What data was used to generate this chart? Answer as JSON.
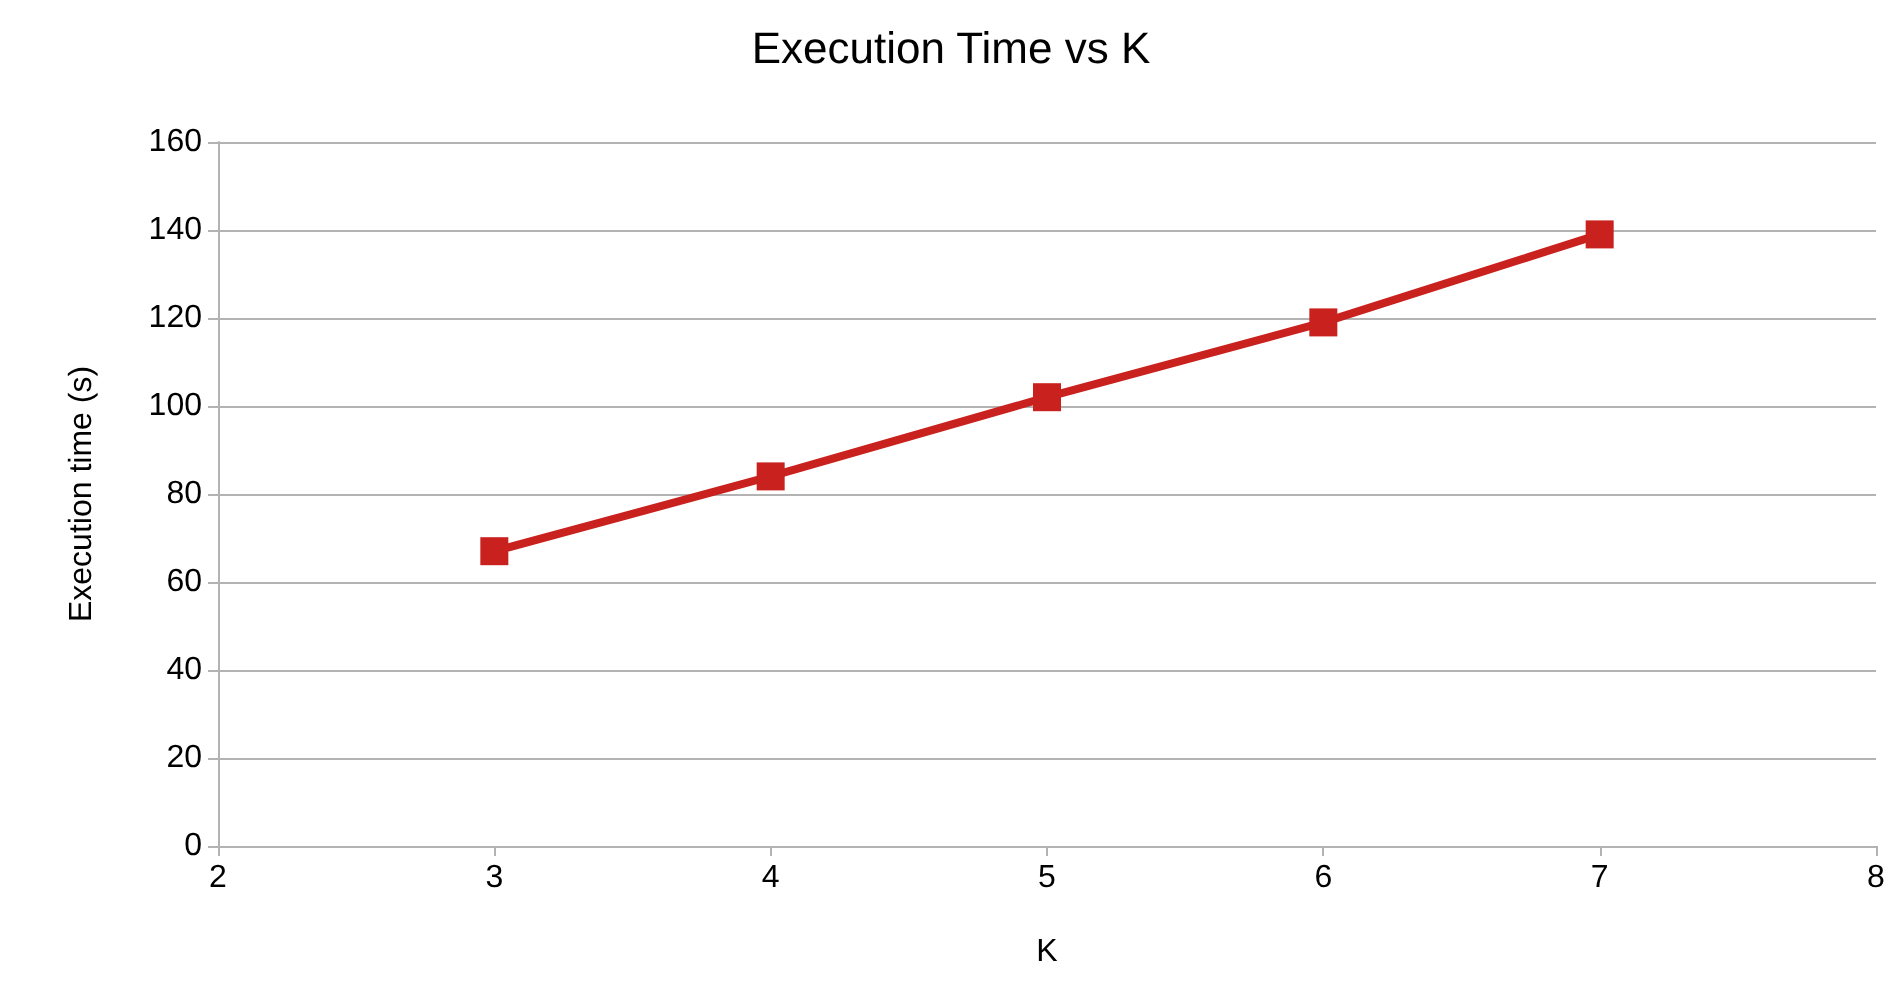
{
  "chart_data": {
    "type": "line",
    "title": "Execution Time vs K",
    "xlabel": "K",
    "ylabel": "Execution time (s)",
    "x": [
      3,
      4,
      5,
      6,
      7
    ],
    "series": [
      {
        "color": "#c9211e",
        "values": [
          67,
          84,
          102,
          119,
          139
        ]
      }
    ],
    "xlim": [
      2,
      8
    ],
    "xticks": [
      2,
      3,
      4,
      5,
      6,
      7,
      8
    ],
    "ylim": [
      0,
      160
    ],
    "yticks": [
      0,
      20,
      40,
      60,
      80,
      100,
      120,
      140,
      160
    ],
    "grid": "y",
    "marker": "square",
    "line_style": "solid"
  }
}
